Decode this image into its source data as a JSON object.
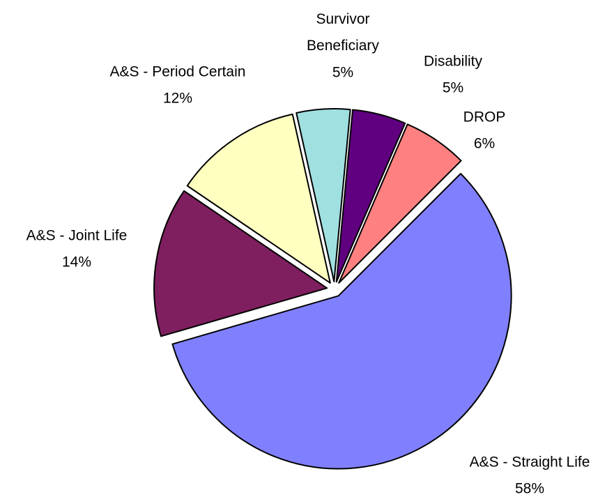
{
  "chart_data": {
    "type": "pie",
    "categories": [
      "A&S - Straight Life",
      "A&S - Joint Life",
      "A&S - Period Certain",
      "Survivor Beneficiary",
      "Disability",
      "DROP"
    ],
    "values": [
      58,
      14,
      12,
      5,
      5,
      6
    ],
    "value_labels": [
      "58%",
      "14%",
      "12%",
      "5%",
      "5%",
      "6%"
    ],
    "colors": [
      "#8080ff",
      "#7f1f5f",
      "#ffffc0",
      "#a0e0e0",
      "#600080",
      "#ff8080"
    ]
  }
}
